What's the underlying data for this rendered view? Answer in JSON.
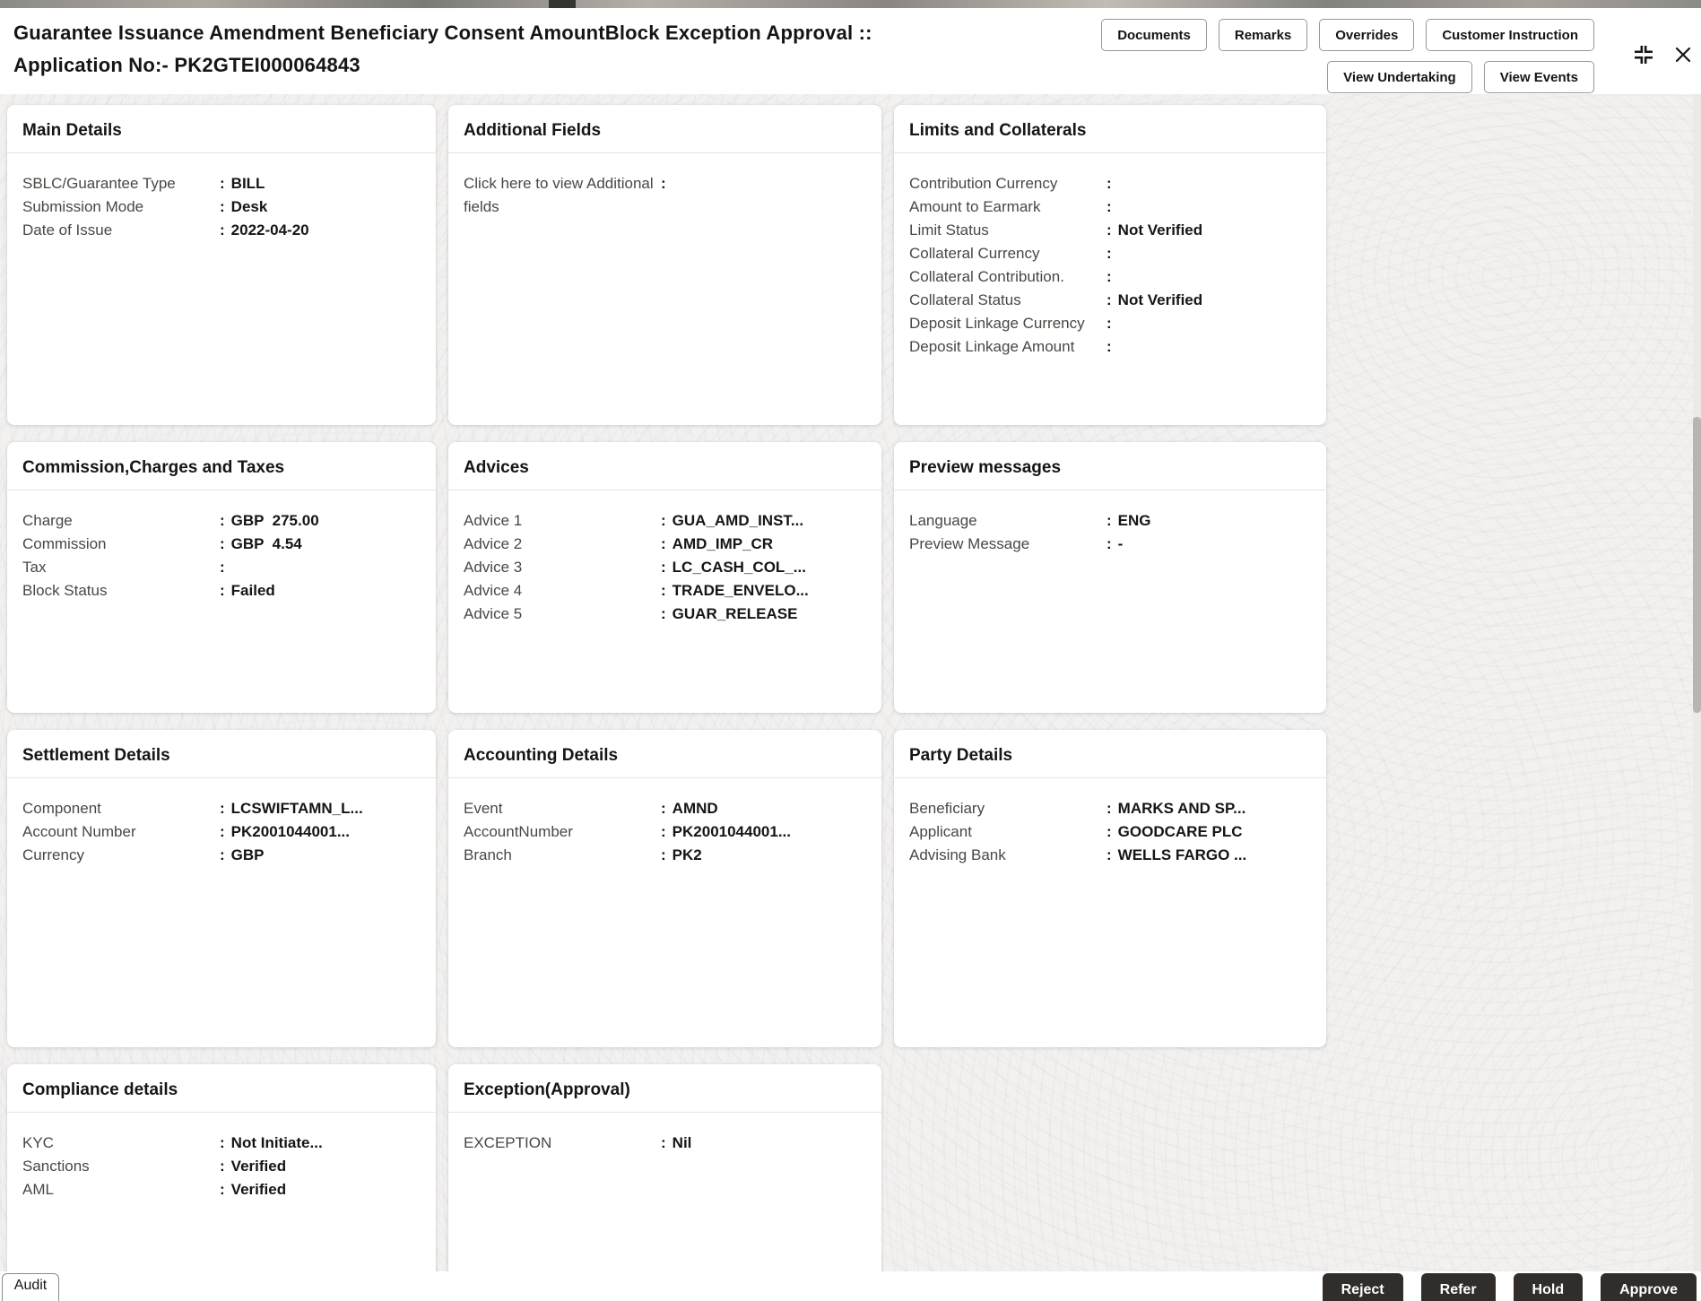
{
  "header": {
    "title_line1": "Guarantee Issuance Amendment Beneficiary Consent AmountBlock Exception Approval ::",
    "title_line2": "Application No:- PK2GTEI000064843",
    "buttons_row1": [
      "Documents",
      "Remarks",
      "Overrides",
      "Customer Instruction"
    ],
    "buttons_row2": [
      "View Undertaking",
      "View Events"
    ]
  },
  "cards": [
    {
      "id": "main-details",
      "title": "Main Details",
      "rows": [
        {
          "label": "SBLC/Guarantee Type",
          "value": "BILL"
        },
        {
          "label": "Submission Mode",
          "value": "Desk"
        },
        {
          "label": "Date of Issue",
          "value": "2022-04-20"
        }
      ]
    },
    {
      "id": "additional-fields",
      "title": "Additional Fields",
      "rows": [
        {
          "label": "Click here to view Additional fields",
          "value": "",
          "link": true
        }
      ]
    },
    {
      "id": "limits-and-collaterals",
      "title": "Limits and Collaterals",
      "rows": [
        {
          "label": "Contribution Currency",
          "value": ""
        },
        {
          "label": "Amount to Earmark",
          "value": ""
        },
        {
          "label": "Limit Status",
          "value": "Not Verified"
        },
        {
          "label": "Collateral Currency",
          "value": ""
        },
        {
          "label": "Collateral Contribution.",
          "value": ""
        },
        {
          "label": "Collateral Status",
          "value": "Not Verified"
        },
        {
          "label": "Deposit Linkage Currency",
          "value": ""
        },
        {
          "label": "Deposit Linkage Amount",
          "value": ""
        }
      ]
    },
    {
      "id": "commission-charges-taxes",
      "title": "Commission,Charges and Taxes",
      "rows": [
        {
          "label": "Charge",
          "value": "GBP  275.00"
        },
        {
          "label": "Commission",
          "value": "GBP  4.54"
        },
        {
          "label": "Tax",
          "value": ""
        },
        {
          "label": "Block Status",
          "value": "Failed"
        }
      ]
    },
    {
      "id": "advices",
      "title": "Advices",
      "rows": [
        {
          "label": "Advice 1",
          "value": "GUA_AMD_INST..."
        },
        {
          "label": "Advice 2",
          "value": "AMD_IMP_CR"
        },
        {
          "label": "Advice 3",
          "value": "LC_CASH_COL_..."
        },
        {
          "label": "Advice 4",
          "value": "TRADE_ENVELO..."
        },
        {
          "label": "Advice 5",
          "value": "GUAR_RELEASE"
        }
      ]
    },
    {
      "id": "preview-messages",
      "title": "Preview messages",
      "rows": [
        {
          "label": "Language",
          "value": "ENG"
        },
        {
          "label": "Preview Message",
          "value": "-"
        }
      ]
    },
    {
      "id": "settlement-details",
      "title": "Settlement Details",
      "rows": [
        {
          "label": "Component",
          "value": "LCSWIFTAMN_L..."
        },
        {
          "label": "Account Number",
          "value": "PK2001044001..."
        },
        {
          "label": "Currency",
          "value": "GBP"
        }
      ]
    },
    {
      "id": "accounting-details",
      "title": "Accounting Details",
      "rows": [
        {
          "label": "Event",
          "value": "AMND"
        },
        {
          "label": "AccountNumber",
          "value": "PK2001044001..."
        },
        {
          "label": "Branch",
          "value": "PK2"
        }
      ]
    },
    {
      "id": "party-details",
      "title": "Party Details",
      "rows": [
        {
          "label": "Beneficiary",
          "value": "MARKS AND SP..."
        },
        {
          "label": "Applicant",
          "value": "GOODCARE PLC"
        },
        {
          "label": "Advising Bank",
          "value": "WELLS FARGO ..."
        }
      ]
    },
    {
      "id": "compliance-details",
      "title": "Compliance details",
      "rows": [
        {
          "label": "KYC",
          "value": "Not Initiate..."
        },
        {
          "label": "Sanctions",
          "value": "Verified"
        },
        {
          "label": "AML",
          "value": "Verified"
        }
      ]
    },
    {
      "id": "exception-approval",
      "title": "Exception(Approval)",
      "rows": [
        {
          "label": "EXCEPTION",
          "value": "Nil"
        }
      ]
    }
  ],
  "footer": {
    "audit_label": "Audit",
    "actions": [
      "Reject",
      "Refer",
      "Hold",
      "Approve"
    ]
  },
  "colors": {
    "action_button_bg": "#312d2a",
    "action_button_text": "#ffffff",
    "content_bg": "#f2f1f0",
    "card_bg": "#ffffff"
  }
}
